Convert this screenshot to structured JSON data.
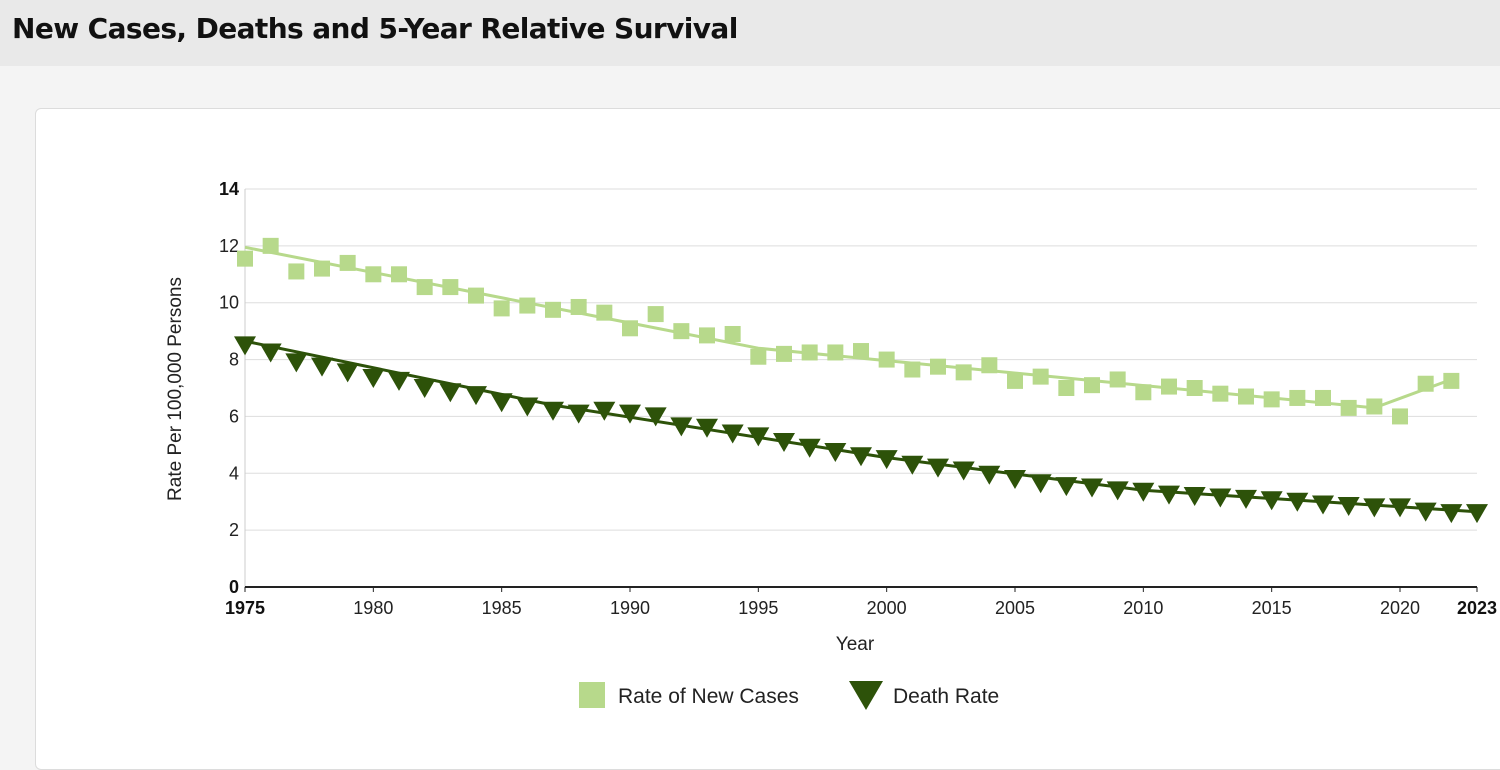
{
  "page": {
    "title": "New Cases, Deaths and 5-Year Relative Survival"
  },
  "chart_data": {
    "type": "scatter",
    "xlabel": "Year",
    "ylabel": "Rate Per 100,000 Persons",
    "xlim": [
      1975,
      2023
    ],
    "ylim": [
      0,
      14
    ],
    "yticks": [
      "0",
      "2",
      "4",
      "6",
      "8",
      "10",
      "12",
      "14"
    ],
    "xticks": [
      {
        "value": 1975,
        "label": "1975",
        "bold": true
      },
      {
        "value": 1980,
        "label": "1980",
        "bold": false
      },
      {
        "value": 1985,
        "label": "1985",
        "bold": false
      },
      {
        "value": 1990,
        "label": "1990",
        "bold": false
      },
      {
        "value": 1995,
        "label": "1995",
        "bold": false
      },
      {
        "value": 2000,
        "label": "2000",
        "bold": false
      },
      {
        "value": 2005,
        "label": "2005",
        "bold": false
      },
      {
        "value": 2010,
        "label": "2010",
        "bold": false
      },
      {
        "value": 2015,
        "label": "2015",
        "bold": false
      },
      {
        "value": 2020,
        "label": "2020",
        "bold": false
      },
      {
        "value": 2023,
        "label": "2023",
        "bold": true
      }
    ],
    "grid": true,
    "legend_position": "bottom",
    "series": [
      {
        "name": "Rate of New Cases",
        "marker": "square",
        "color": "#b7d98b",
        "points": [
          [
            1975,
            11.55
          ],
          [
            1976,
            12.0
          ],
          [
            1977,
            11.1
          ],
          [
            1978,
            11.2
          ],
          [
            1979,
            11.4
          ],
          [
            1980,
            11.0
          ],
          [
            1981,
            11.0
          ],
          [
            1982,
            10.55
          ],
          [
            1983,
            10.55
          ],
          [
            1984,
            10.25
          ],
          [
            1985,
            9.8
          ],
          [
            1986,
            9.9
          ],
          [
            1987,
            9.75
          ],
          [
            1988,
            9.85
          ],
          [
            1989,
            9.65
          ],
          [
            1990,
            9.1
          ],
          [
            1991,
            9.6
          ],
          [
            1992,
            9.0
          ],
          [
            1993,
            8.85
          ],
          [
            1994,
            8.9
          ],
          [
            1995,
            8.1
          ],
          [
            1996,
            8.2
          ],
          [
            1997,
            8.25
          ],
          [
            1998,
            8.25
          ],
          [
            1999,
            8.3
          ],
          [
            2000,
            8.0
          ],
          [
            2001,
            7.65
          ],
          [
            2002,
            7.75
          ],
          [
            2003,
            7.55
          ],
          [
            2004,
            7.8
          ],
          [
            2005,
            7.25
          ],
          [
            2006,
            7.4
          ],
          [
            2007,
            7.0
          ],
          [
            2008,
            7.1
          ],
          [
            2009,
            7.3
          ],
          [
            2010,
            6.85
          ],
          [
            2011,
            7.05
          ],
          [
            2012,
            7.0
          ],
          [
            2013,
            6.8
          ],
          [
            2014,
            6.7
          ],
          [
            2015,
            6.6
          ],
          [
            2016,
            6.65
          ],
          [
            2017,
            6.65
          ],
          [
            2018,
            6.3
          ],
          [
            2019,
            6.35
          ],
          [
            2020,
            6.0
          ],
          [
            2021,
            7.15
          ],
          [
            2022,
            7.25
          ]
        ],
        "trend": [
          [
            1975,
            11.95
          ],
          [
            1995,
            8.4
          ],
          [
            2019,
            6.3
          ],
          [
            2022,
            7.3
          ]
        ]
      },
      {
        "name": "Death Rate",
        "marker": "triangle-down",
        "color": "#2d5209",
        "points": [
          [
            1975,
            8.5
          ],
          [
            1976,
            8.25
          ],
          [
            1977,
            7.9
          ],
          [
            1978,
            7.75
          ],
          [
            1979,
            7.55
          ],
          [
            1980,
            7.35
          ],
          [
            1981,
            7.25
          ],
          [
            1982,
            7.0
          ],
          [
            1983,
            6.85
          ],
          [
            1984,
            6.75
          ],
          [
            1985,
            6.5
          ],
          [
            1986,
            6.35
          ],
          [
            1987,
            6.2
          ],
          [
            1988,
            6.1
          ],
          [
            1989,
            6.2
          ],
          [
            1990,
            6.1
          ],
          [
            1991,
            6.0
          ],
          [
            1992,
            5.65
          ],
          [
            1993,
            5.6
          ],
          [
            1994,
            5.4
          ],
          [
            1995,
            5.3
          ],
          [
            1996,
            5.1
          ],
          [
            1997,
            4.9
          ],
          [
            1998,
            4.75
          ],
          [
            1999,
            4.6
          ],
          [
            2000,
            4.5
          ],
          [
            2001,
            4.3
          ],
          [
            2002,
            4.2
          ],
          [
            2003,
            4.1
          ],
          [
            2004,
            3.95
          ],
          [
            2005,
            3.8
          ],
          [
            2006,
            3.65
          ],
          [
            2007,
            3.55
          ],
          [
            2008,
            3.5
          ],
          [
            2009,
            3.4
          ],
          [
            2010,
            3.35
          ],
          [
            2011,
            3.25
          ],
          [
            2012,
            3.2
          ],
          [
            2013,
            3.15
          ],
          [
            2014,
            3.1
          ],
          [
            2015,
            3.05
          ],
          [
            2016,
            3.0
          ],
          [
            2017,
            2.9
          ],
          [
            2018,
            2.85
          ],
          [
            2019,
            2.8
          ],
          [
            2020,
            2.8
          ],
          [
            2021,
            2.65
          ],
          [
            2022,
            2.6
          ],
          [
            2023,
            2.6
          ]
        ],
        "trend": [
          [
            1975,
            8.65
          ],
          [
            1987,
            6.4
          ],
          [
            2000,
            4.55
          ],
          [
            2010,
            3.4
          ],
          [
            2023,
            2.65
          ]
        ]
      }
    ]
  }
}
